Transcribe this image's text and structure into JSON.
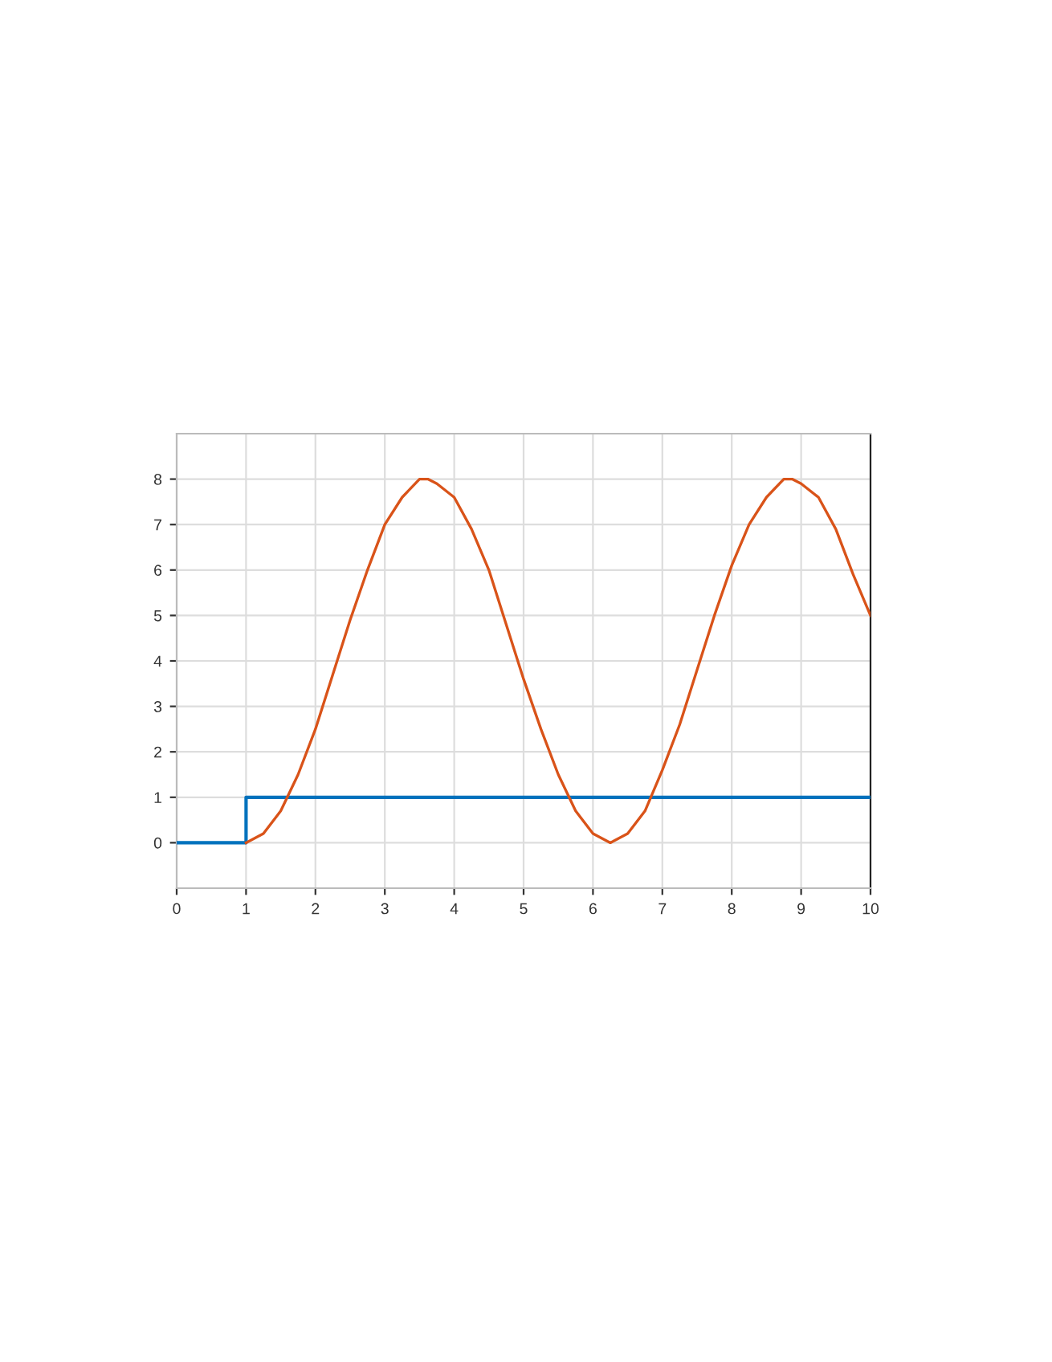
{
  "chart_data": {
    "type": "line",
    "xlim": [
      0,
      10
    ],
    "ylim": [
      -1,
      9
    ],
    "xticks": [
      0,
      1,
      2,
      3,
      4,
      5,
      6,
      7,
      8,
      9,
      10
    ],
    "yticks": [
      0,
      1,
      2,
      3,
      4,
      5,
      6,
      7,
      8
    ],
    "grid": true,
    "marker": "none",
    "line_style": "solid",
    "series": [
      {
        "type": "step",
        "color": "#0072bd",
        "x": [
          0,
          1,
          10
        ],
        "values": [
          0,
          1,
          1
        ]
      },
      {
        "color": "#d95319",
        "x": [
          1,
          1.25,
          1.5,
          1.75,
          2,
          2.25,
          2.5,
          2.75,
          3,
          3.25,
          3.5,
          3.62,
          3.75,
          4,
          4.25,
          4.5,
          4.75,
          5,
          5.25,
          5.5,
          5.75,
          6,
          6.25,
          6.5,
          6.75,
          7,
          7.25,
          7.5,
          7.75,
          8,
          8.25,
          8.5,
          8.75,
          8.87,
          9,
          9.25,
          9.5,
          9.75,
          10
        ],
        "values": [
          0,
          0.2,
          0.7,
          1.5,
          2.5,
          3.7,
          4.9,
          6.0,
          7.0,
          7.6,
          8.0,
          8.0,
          7.9,
          7.6,
          6.9,
          6.0,
          4.8,
          3.6,
          2.5,
          1.5,
          0.7,
          0.2,
          0,
          0.2,
          0.7,
          1.6,
          2.6,
          3.8,
          5.0,
          6.1,
          7.0,
          7.6,
          8.0,
          8.0,
          7.9,
          7.6,
          6.9,
          5.9,
          5.0
        ]
      }
    ]
  }
}
